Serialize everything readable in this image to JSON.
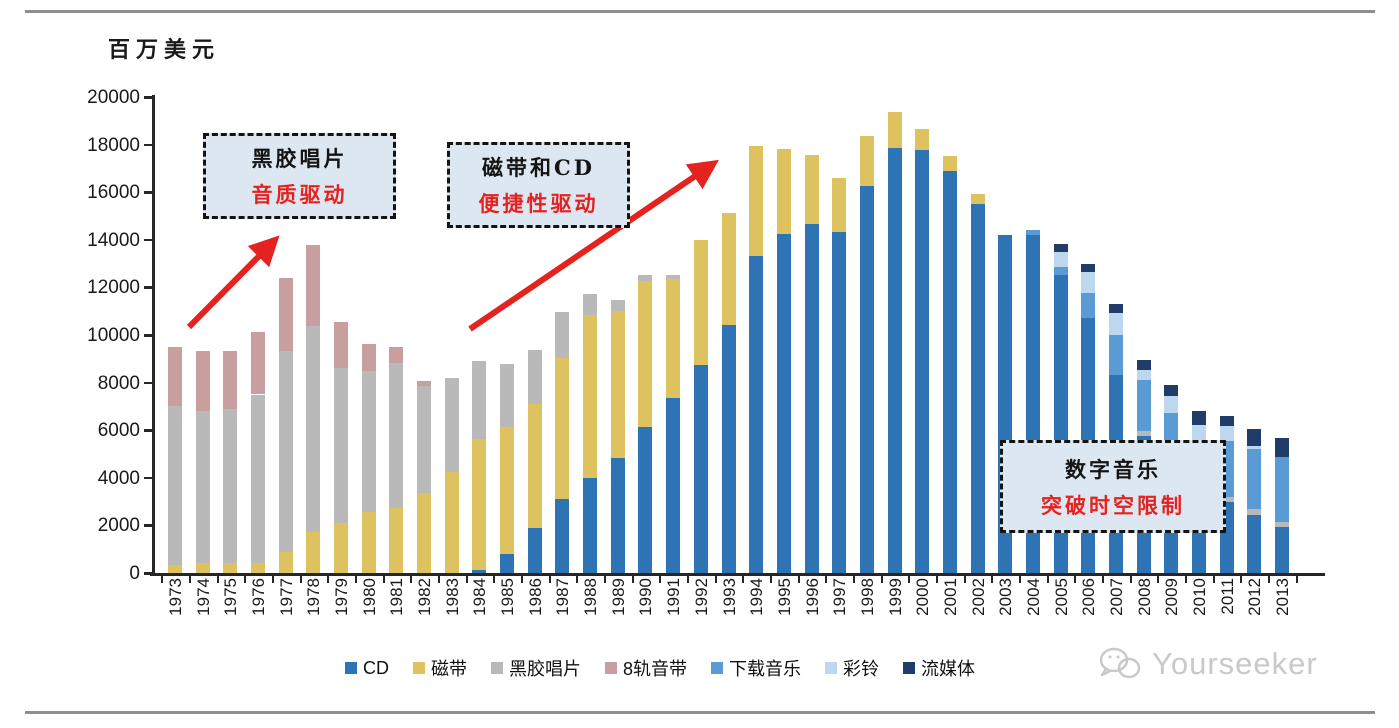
{
  "header": {
    "unit_label": "百万美元"
  },
  "annotations": [
    {
      "line1": "黑胶唱片",
      "line2": "音质驱动"
    },
    {
      "line1": "磁带和CD",
      "line2": "便捷性驱动"
    },
    {
      "line1": "数字音乐",
      "line2": "突破时空限制"
    }
  ],
  "watermark": {
    "text": "Yourseeker"
  },
  "colors": {
    "accent_red": "#e42320",
    "annotation_fill": "#dde7f2",
    "axis": "#262626",
    "watermark_gray": "#c9c9c9"
  },
  "chart_data": {
    "type": "bar",
    "stacked": true,
    "ylabel": "百万美元",
    "ylim": [
      0,
      20000
    ],
    "ytick_step": 2000,
    "grid": false,
    "legend_position": "bottom",
    "categories": [
      1973,
      1974,
      1975,
      1976,
      1977,
      1978,
      1979,
      1980,
      1981,
      1982,
      1983,
      1984,
      1985,
      1986,
      1987,
      1988,
      1989,
      1990,
      1991,
      1992,
      1993,
      1994,
      1995,
      1996,
      1997,
      1998,
      1999,
      2000,
      2001,
      2002,
      2003,
      2004,
      2005,
      2006,
      2007,
      2008,
      2009,
      2010,
      2011,
      2012,
      2013
    ],
    "series": [
      {
        "name": "CD",
        "color": "#2e74b5",
        "values": [
          0,
          0,
          0,
          0,
          0,
          0,
          0,
          0,
          0,
          0,
          0,
          120,
          780,
          1870,
          3120,
          4000,
          4815,
          6150,
          7360,
          8755,
          10420,
          13320,
          14250,
          14670,
          14320,
          16270,
          17870,
          17760,
          16900,
          15500,
          14220,
          14200,
          12510,
          10700,
          8335,
          5760,
          3745,
          2300,
          2980,
          2450,
          1930
        ]
      },
      {
        "name": "磁带",
        "color": "#dfc260",
        "values": [
          350,
          400,
          405,
          400,
          890,
          1725,
          2115,
          2560,
          2750,
          3350,
          4250,
          5505,
          5370,
          5215,
          5910,
          6845,
          6190,
          6110,
          5000,
          5245,
          4690,
          4630,
          3550,
          2890,
          2270,
          2110,
          1500,
          900,
          620,
          420,
          0,
          0,
          0,
          0,
          0,
          0,
          0,
          0,
          0,
          0,
          0
        ]
      },
      {
        "name": "黑胶唱片",
        "color": "#b9b9b9",
        "values": [
          6650,
          6405,
          6495,
          7100,
          8420,
          8655,
          6500,
          5915,
          6070,
          4500,
          3945,
          3270,
          2650,
          2265,
          1920,
          880,
          460,
          250,
          150,
          0,
          0,
          0,
          0,
          0,
          0,
          0,
          0,
          0,
          0,
          0,
          0,
          0,
          0,
          0,
          0,
          210,
          275,
          200,
          210,
          220,
          210
        ]
      },
      {
        "name": "8轨音带",
        "color": "#c99e9e",
        "values": [
          2500,
          2535,
          2440,
          2610,
          3090,
          3420,
          1945,
          1155,
          670,
          200,
          0,
          0,
          0,
          0,
          0,
          0,
          0,
          0,
          0,
          0,
          0,
          0,
          0,
          0,
          0,
          0,
          0,
          0,
          0,
          0,
          0,
          0,
          0,
          0,
          0,
          0,
          0,
          0,
          0,
          0,
          0
        ]
      },
      {
        "name": "下载音乐",
        "color": "#5b9bd5",
        "values": [
          0,
          0,
          0,
          0,
          0,
          0,
          0,
          0,
          0,
          0,
          0,
          0,
          0,
          0,
          0,
          0,
          0,
          0,
          0,
          0,
          0,
          0,
          0,
          0,
          0,
          0,
          0,
          0,
          0,
          0,
          0,
          200,
          350,
          1045,
          1670,
          2150,
          2710,
          3100,
          2365,
          2550,
          2715
        ]
      },
      {
        "name": "彩铃",
        "color": "#bdd7ee",
        "values": [
          0,
          0,
          0,
          0,
          0,
          0,
          0,
          0,
          0,
          0,
          0,
          0,
          0,
          0,
          0,
          0,
          0,
          0,
          0,
          0,
          0,
          0,
          0,
          0,
          0,
          0,
          0,
          0,
          0,
          0,
          0,
          0,
          620,
          905,
          905,
          420,
          700,
          620,
          625,
          100,
          0
        ]
      },
      {
        "name": "流媒体",
        "color": "#1f3d68",
        "values": [
          0,
          0,
          0,
          0,
          0,
          0,
          0,
          0,
          0,
          0,
          0,
          0,
          0,
          0,
          0,
          0,
          0,
          0,
          0,
          0,
          0,
          0,
          0,
          0,
          0,
          0,
          0,
          0,
          0,
          0,
          0,
          0,
          350,
          345,
          375,
          420,
          460,
          580,
          420,
          725,
          835
        ]
      }
    ]
  }
}
